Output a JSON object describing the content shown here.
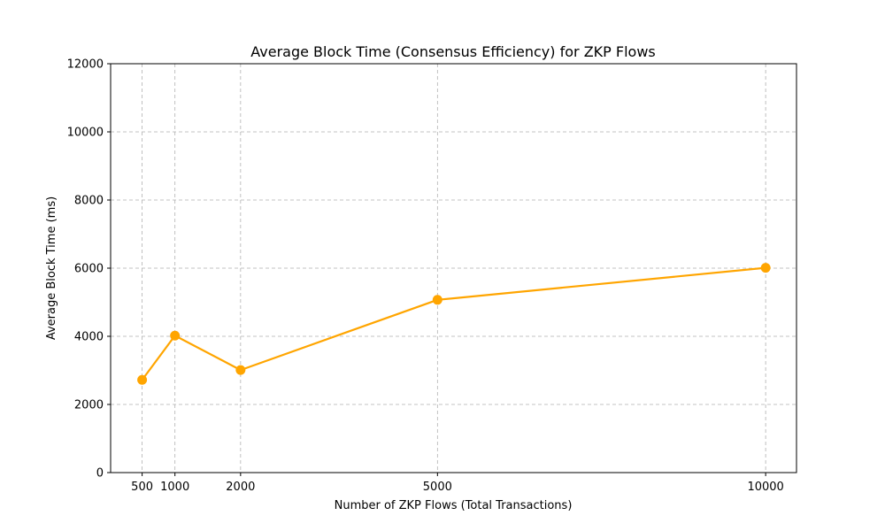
{
  "chart_data": {
    "type": "line",
    "title": "Average Block Time (Consensus Efficiency) for ZKP Flows",
    "xlabel": "Number of ZKP Flows (Total Transactions)",
    "ylabel": "Average Block Time (ms)",
    "x": [
      500,
      1000,
      2000,
      5000,
      10000
    ],
    "x_ticks": [
      "500",
      "1000",
      "2000",
      "5000",
      "10000"
    ],
    "y_ticks": [
      "0",
      "2000",
      "4000",
      "6000",
      "8000",
      "10000",
      "12000"
    ],
    "xlim": [
      20,
      10470
    ],
    "ylim": [
      0,
      12000
    ],
    "grid": true,
    "series": [
      {
        "values": [
          2720,
          4020,
          3010,
          5070,
          6010
        ],
        "color": "#ffa500"
      }
    ]
  }
}
